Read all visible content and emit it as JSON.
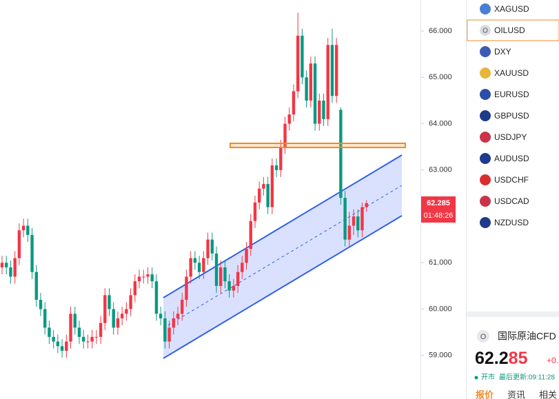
{
  "chart_data": {
    "type": "candlestick",
    "up_color": "#f23645",
    "down_color": "#089981",
    "ylim": [
      58.06,
      66.67
    ],
    "yticks": [
      {
        "value": 66,
        "label": "66.000"
      },
      {
        "value": 65,
        "label": "65.000"
      },
      {
        "value": 64,
        "label": "64.000"
      },
      {
        "value": 63,
        "label": "63.000"
      },
      {
        "value": 61,
        "label": "61.000"
      },
      {
        "value": 60,
        "label": "60.000"
      },
      {
        "value": 59,
        "label": "59.000"
      }
    ],
    "open": [
      60.9,
      61.0,
      60.9,
      60.7,
      61.1,
      61.7,
      61.8,
      61.6,
      60.8,
      60.2,
      60.0,
      59.6,
      59.4,
      59.3,
      59.2,
      59.1,
      59.3,
      59.9,
      59.6,
      59.4,
      59.3,
      59.3,
      59.4,
      59.4,
      59.7,
      60.3,
      60.0,
      59.6,
      59.8,
      59.9,
      60.0,
      60.3,
      60.6,
      60.7,
      60.7,
      60.75,
      60.6,
      59.9,
      59.8,
      59.3,
      59.6,
      59.8,
      59.9,
      60.2,
      60.7,
      61.1,
      61.0,
      60.8,
      61.1,
      61.5,
      61.2,
      60.5,
      60.9,
      60.6,
      60.4,
      60.5,
      60.8,
      61.0,
      61.3,
      61.9,
      62.3,
      62.6,
      62.7,
      62.2,
      63.1,
      63.0,
      63.5,
      64.0,
      64.2,
      64.7,
      65.9,
      65.0,
      64.5,
      65.3,
      64.0,
      64.5,
      64.1,
      65.7,
      64.6,
      64.3,
      62.4,
      61.5,
      61.8,
      62.0,
      61.7,
      62.2
    ],
    "high": [
      61.15,
      61.15,
      61.05,
      61.25,
      61.85,
      61.95,
      61.95,
      61.75,
      60.95,
      60.35,
      60.15,
      59.75,
      59.55,
      59.45,
      59.35,
      59.45,
      60.05,
      60.05,
      59.75,
      59.55,
      59.45,
      59.55,
      59.55,
      59.85,
      60.45,
      60.45,
      60.15,
      59.95,
      60.05,
      60.15,
      60.45,
      60.75,
      60.85,
      60.85,
      60.9,
      60.9,
      60.75,
      60.05,
      59.95,
      59.75,
      59.95,
      60.05,
      60.35,
      60.85,
      61.25,
      61.25,
      61.15,
      61.25,
      61.65,
      61.65,
      61.35,
      61.05,
      61.05,
      60.75,
      60.65,
      60.95,
      61.15,
      61.45,
      62.05,
      62.45,
      62.75,
      62.85,
      62.85,
      63.25,
      63.25,
      63.65,
      64.15,
      64.35,
      64.85,
      66.4,
      66.05,
      65.15,
      65.45,
      65.45,
      64.65,
      64.65,
      65.85,
      66.05,
      65.85,
      64.35,
      62.55,
      62.1,
      62.15,
      62.15,
      62.3,
      62.35
    ],
    "low": [
      60.75,
      60.75,
      60.55,
      60.55,
      60.95,
      61.55,
      61.45,
      60.65,
      60.05,
      59.85,
      59.45,
      59.25,
      59.15,
      59.05,
      58.95,
      58.95,
      59.15,
      59.45,
      59.25,
      59.15,
      59.15,
      59.15,
      59.25,
      59.25,
      59.55,
      59.85,
      59.45,
      59.45,
      59.65,
      59.75,
      59.85,
      60.15,
      60.45,
      60.55,
      60.55,
      60.45,
      59.75,
      59.65,
      59.15,
      59.15,
      59.45,
      59.65,
      59.75,
      60.05,
      60.55,
      60.85,
      60.65,
      60.65,
      60.95,
      61.05,
      60.35,
      60.35,
      60.45,
      60.25,
      60.25,
      60.35,
      60.65,
      60.85,
      61.15,
      61.75,
      62.15,
      62.45,
      62.05,
      62.05,
      62.85,
      62.85,
      63.35,
      63.85,
      64.05,
      64.55,
      64.85,
      64.35,
      64.35,
      63.85,
      63.85,
      63.95,
      63.95,
      64.45,
      64.45,
      62.25,
      61.35,
      61.35,
      61.6,
      61.55,
      61.55,
      62.1
    ],
    "close": [
      61.0,
      60.9,
      60.7,
      61.1,
      61.7,
      61.8,
      61.6,
      60.8,
      60.2,
      60.0,
      59.6,
      59.4,
      59.3,
      59.2,
      59.1,
      59.3,
      59.9,
      59.6,
      59.4,
      59.3,
      59.3,
      59.4,
      59.4,
      59.7,
      60.3,
      60.0,
      59.6,
      59.8,
      59.9,
      60.0,
      60.3,
      60.6,
      60.7,
      60.7,
      60.75,
      60.6,
      59.9,
      59.8,
      59.3,
      59.6,
      59.8,
      59.9,
      60.2,
      60.7,
      61.1,
      61.0,
      60.8,
      61.1,
      61.5,
      61.2,
      60.5,
      60.9,
      60.6,
      60.4,
      60.5,
      60.8,
      61.0,
      61.3,
      61.9,
      62.3,
      62.6,
      62.7,
      62.2,
      63.1,
      63.0,
      63.5,
      64.0,
      64.2,
      64.7,
      65.9,
      65.0,
      64.5,
      65.3,
      64.0,
      64.5,
      64.1,
      65.7,
      64.6,
      65.7,
      62.4,
      61.5,
      61.8,
      62.0,
      61.7,
      62.2,
      62.285
    ],
    "last_price_label": "62.285",
    "countdown": "01:48:26"
  },
  "watchlist": [
    {
      "symbol": "XAGUSD",
      "icon": "#4a7fd6"
    },
    {
      "symbol": "OILUSD",
      "icon": "#d9dde3",
      "icon_text": "O"
    },
    {
      "symbol": "DXY",
      "icon": "#3c5bb5"
    },
    {
      "symbol": "XAUUSD",
      "icon": "#e8b53a"
    },
    {
      "symbol": "EURUSD",
      "icon": "#2a4fa8"
    },
    {
      "symbol": "GBPUSD",
      "icon": "#1f3a8a"
    },
    {
      "symbol": "USDJPY",
      "icon": "#c9344a"
    },
    {
      "symbol": "AUDUSD",
      "icon": "#1f3a8a"
    },
    {
      "symbol": "USDCHF",
      "icon": "#d92e2e"
    },
    {
      "symbol": "USDCAD",
      "icon": "#c9344a"
    },
    {
      "symbol": "NZDUSD",
      "icon": "#1f3a8a"
    }
  ],
  "quote": {
    "icon_text": "O",
    "name": "国际原油CFD",
    "price_main": "62.2",
    "price_tail": "85",
    "change": "+0.",
    "status": "开市",
    "updated": "最后更新:09:11:28",
    "tabs": [
      "报价",
      "资讯",
      "相关"
    ]
  }
}
